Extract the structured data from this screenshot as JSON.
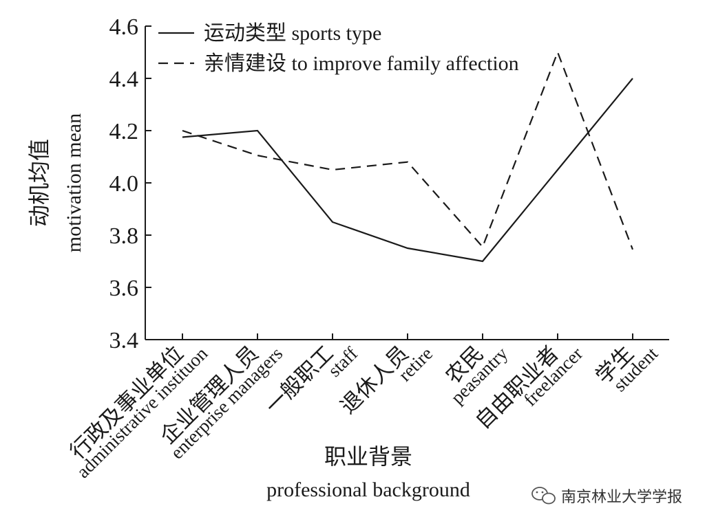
{
  "chart_data": {
    "type": "line",
    "ylabel_zh": "动机均值",
    "ylabel_en": "motivation mean",
    "xlabel_zh": "职业背景",
    "xlabel_en": "professional background",
    "ylim": [
      3.4,
      4.6
    ],
    "yticks": [
      "3.4",
      "3.6",
      "3.8",
      "4.0",
      "4.2",
      "4.4",
      "4.6"
    ],
    "grid": false,
    "legend_position": "top-left",
    "categories": [
      {
        "zh": "行政及事业单位",
        "en": "administrative instituon"
      },
      {
        "zh": "企业管理人员",
        "en": "enterprise managers"
      },
      {
        "zh": "一般职工",
        "en": "staff"
      },
      {
        "zh": "退休人员",
        "en": "retire"
      },
      {
        "zh": "农民",
        "en": "peasantry"
      },
      {
        "zh": "自由职业者",
        "en": "freelancer"
      },
      {
        "zh": "学生",
        "en": "student"
      }
    ],
    "series": [
      {
        "name": "运动类型 sports type",
        "style": "solid",
        "values": [
          4.175,
          4.2,
          3.85,
          3.75,
          3.7,
          4.05,
          4.4
        ]
      },
      {
        "name": "亲情建设 to improve family affection",
        "style": "dashed",
        "values": [
          4.2,
          4.105,
          4.05,
          4.08,
          3.755,
          4.5,
          3.745
        ]
      }
    ]
  },
  "watermark": {
    "icon": "wechat-icon",
    "text": "南京林业大学学报"
  }
}
